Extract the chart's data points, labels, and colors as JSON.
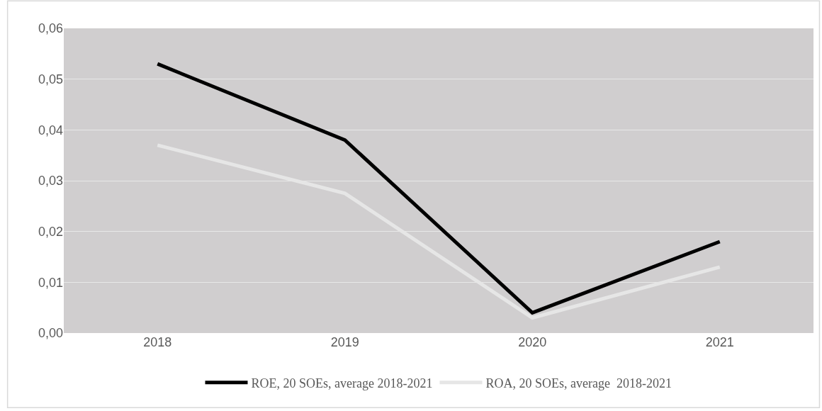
{
  "chart_data": {
    "type": "line",
    "categories": [
      "2018",
      "2019",
      "2020",
      "2021"
    ],
    "series": [
      {
        "name": "ROE, 20 SOEs, average 2018-2021",
        "color": "#000000",
        "values": [
          0.053,
          0.038,
          0.004,
          0.018
        ]
      },
      {
        "name": "ROA, 20 SOEs, average  2018-2021",
        "color": "#e6e6e6",
        "values": [
          0.037,
          0.0275,
          0.003,
          0.013
        ]
      }
    ],
    "ylim": [
      0,
      0.06
    ],
    "yticks": [
      {
        "value": 0,
        "label": "0,00"
      },
      {
        "value": 0.01,
        "label": "0,01"
      },
      {
        "value": 0.02,
        "label": "0,02"
      },
      {
        "value": 0.03,
        "label": "0,03"
      },
      {
        "value": 0.04,
        "label": "0,04"
      },
      {
        "value": 0.05,
        "label": "0,05"
      },
      {
        "value": 0.06,
        "label": "0,06"
      }
    ],
    "grid": "y",
    "legend": "bottom",
    "marker": "none",
    "line_style": "solid"
  }
}
